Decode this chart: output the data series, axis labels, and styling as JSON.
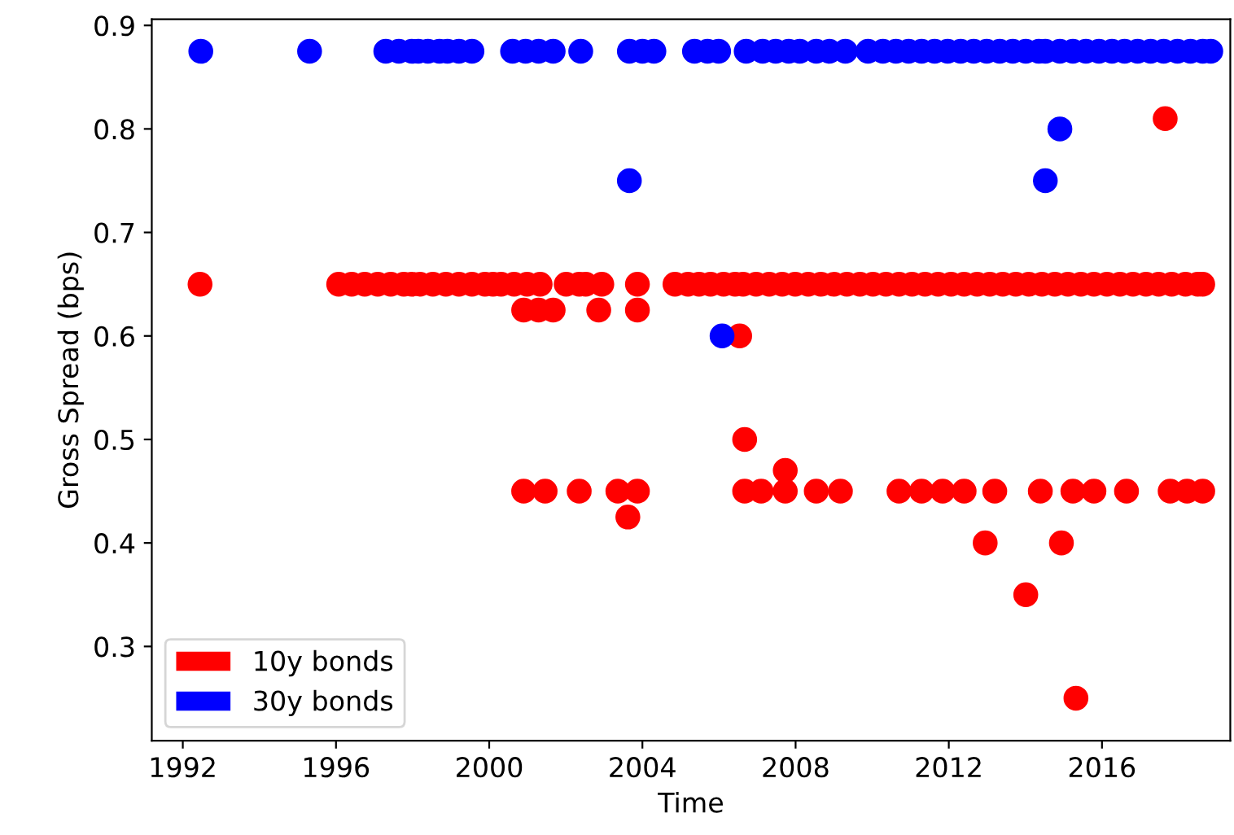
{
  "chart_data": {
    "type": "scatter",
    "xlabel": "Time",
    "ylabel": "Gross Spread (bps)",
    "xlim": [
      1991.19,
      2019.35
    ],
    "ylim": [
      0.209,
      0.906
    ],
    "xticks": [
      1992,
      1996,
      2000,
      2004,
      2008,
      2012,
      2016
    ],
    "yticks": [
      0.3,
      0.4,
      0.5,
      0.6,
      0.7,
      0.8,
      0.9
    ],
    "grid": false,
    "legend": "bottom left",
    "marker": "circle",
    "series": [
      {
        "name": "10y bonds",
        "color": "#ff0000",
        "x": [
          1992.45,
          1996.07,
          1996.41,
          1996.75,
          1997.09,
          1997.43,
          1997.77,
          1997.98,
          1998.19,
          1998.53,
          1998.87,
          1999.21,
          1999.55,
          1999.89,
          2000.1,
          2000.31,
          2000.65,
          2000.99,
          2001.33,
          2002.01,
          2002.35,
          2002.52,
          2002.94,
          2003.87,
          2004.85,
          2005.19,
          2005.48,
          2005.78,
          2006.12,
          2006.42,
          2006.63,
          2006.97,
          2007.31,
          2007.65,
          2007.99,
          2008.33,
          2008.66,
          2009.0,
          2009.34,
          2009.68,
          2010.02,
          2010.36,
          2010.7,
          2011.04,
          2011.38,
          2011.72,
          2012.06,
          2012.4,
          2012.74,
          2013.07,
          2013.41,
          2013.75,
          2014.09,
          2014.43,
          2014.77,
          2015.11,
          2015.45,
          2015.79,
          2016.13,
          2016.47,
          2016.81,
          2017.15,
          2017.48,
          2017.82,
          2018.18,
          2018.5,
          2018.63,
          2000.9,
          2001.29,
          2001.67,
          2002.86,
          2003.87,
          2000.9,
          2001.46,
          2002.35,
          2003.36,
          2003.87,
          2003.62,
          2006.54,
          2006.67,
          2007.73,
          2006.67,
          2007.1,
          2007.73,
          2008.54,
          2009.17,
          2010.7,
          2011.29,
          2011.84,
          2012.4,
          2013.2,
          2014.39,
          2015.24,
          2015.79,
          2016.64,
          2017.78,
          2018.22,
          2018.63,
          2012.95,
          2014.94,
          2014.01,
          2015.32,
          2017.65
        ],
        "values": [
          0.65,
          0.65,
          0.65,
          0.65,
          0.65,
          0.65,
          0.65,
          0.65,
          0.65,
          0.65,
          0.65,
          0.65,
          0.65,
          0.65,
          0.65,
          0.65,
          0.65,
          0.65,
          0.65,
          0.65,
          0.65,
          0.65,
          0.65,
          0.65,
          0.65,
          0.65,
          0.65,
          0.65,
          0.65,
          0.65,
          0.65,
          0.65,
          0.65,
          0.65,
          0.65,
          0.65,
          0.65,
          0.65,
          0.65,
          0.65,
          0.65,
          0.65,
          0.65,
          0.65,
          0.65,
          0.65,
          0.65,
          0.65,
          0.65,
          0.65,
          0.65,
          0.65,
          0.65,
          0.65,
          0.65,
          0.65,
          0.65,
          0.65,
          0.65,
          0.65,
          0.65,
          0.65,
          0.65,
          0.65,
          0.65,
          0.65,
          0.65,
          0.625,
          0.625,
          0.625,
          0.625,
          0.625,
          0.45,
          0.45,
          0.45,
          0.45,
          0.45,
          0.425,
          0.6,
          0.5,
          0.47,
          0.45,
          0.45,
          0.45,
          0.45,
          0.45,
          0.45,
          0.45,
          0.45,
          0.45,
          0.45,
          0.45,
          0.45,
          0.45,
          0.45,
          0.45,
          0.45,
          0.45,
          0.4,
          0.4,
          0.35,
          0.25,
          0.81
        ]
      },
      {
        "name": "30y bonds",
        "color": "#0000ff",
        "x": [
          1992.47,
          1995.31,
          1997.3,
          1997.64,
          1997.98,
          1998.15,
          1998.4,
          1998.7,
          1998.91,
          1999.21,
          1999.55,
          2000.61,
          2000.95,
          2001.29,
          2001.67,
          2002.39,
          2003.66,
          2004.0,
          2004.3,
          2005.36,
          2005.7,
          2005.99,
          2006.71,
          2007.14,
          2007.48,
          2007.82,
          2008.11,
          2008.54,
          2008.88,
          2009.3,
          2009.89,
          2010.28,
          2010.62,
          2010.95,
          2011.29,
          2011.63,
          2011.97,
          2012.31,
          2012.65,
          2012.99,
          2013.33,
          2013.67,
          2014.01,
          2014.35,
          2014.52,
          2014.9,
          2015.24,
          2015.58,
          2015.92,
          2016.26,
          2016.59,
          2016.93,
          2017.27,
          2017.61,
          2017.97,
          2018.31,
          2018.63,
          2018.84,
          2003.66,
          2014.52,
          2014.9,
          2006.08
        ],
        "values": [
          0.875,
          0.875,
          0.875,
          0.875,
          0.875,
          0.875,
          0.875,
          0.875,
          0.875,
          0.875,
          0.875,
          0.875,
          0.875,
          0.875,
          0.875,
          0.875,
          0.875,
          0.875,
          0.875,
          0.875,
          0.875,
          0.875,
          0.875,
          0.875,
          0.875,
          0.875,
          0.875,
          0.875,
          0.875,
          0.875,
          0.875,
          0.875,
          0.875,
          0.875,
          0.875,
          0.875,
          0.875,
          0.875,
          0.875,
          0.875,
          0.875,
          0.875,
          0.875,
          0.875,
          0.875,
          0.875,
          0.875,
          0.875,
          0.875,
          0.875,
          0.875,
          0.875,
          0.875,
          0.875,
          0.875,
          0.875,
          0.875,
          0.875,
          0.75,
          0.75,
          0.8,
          0.6
        ]
      }
    ]
  }
}
